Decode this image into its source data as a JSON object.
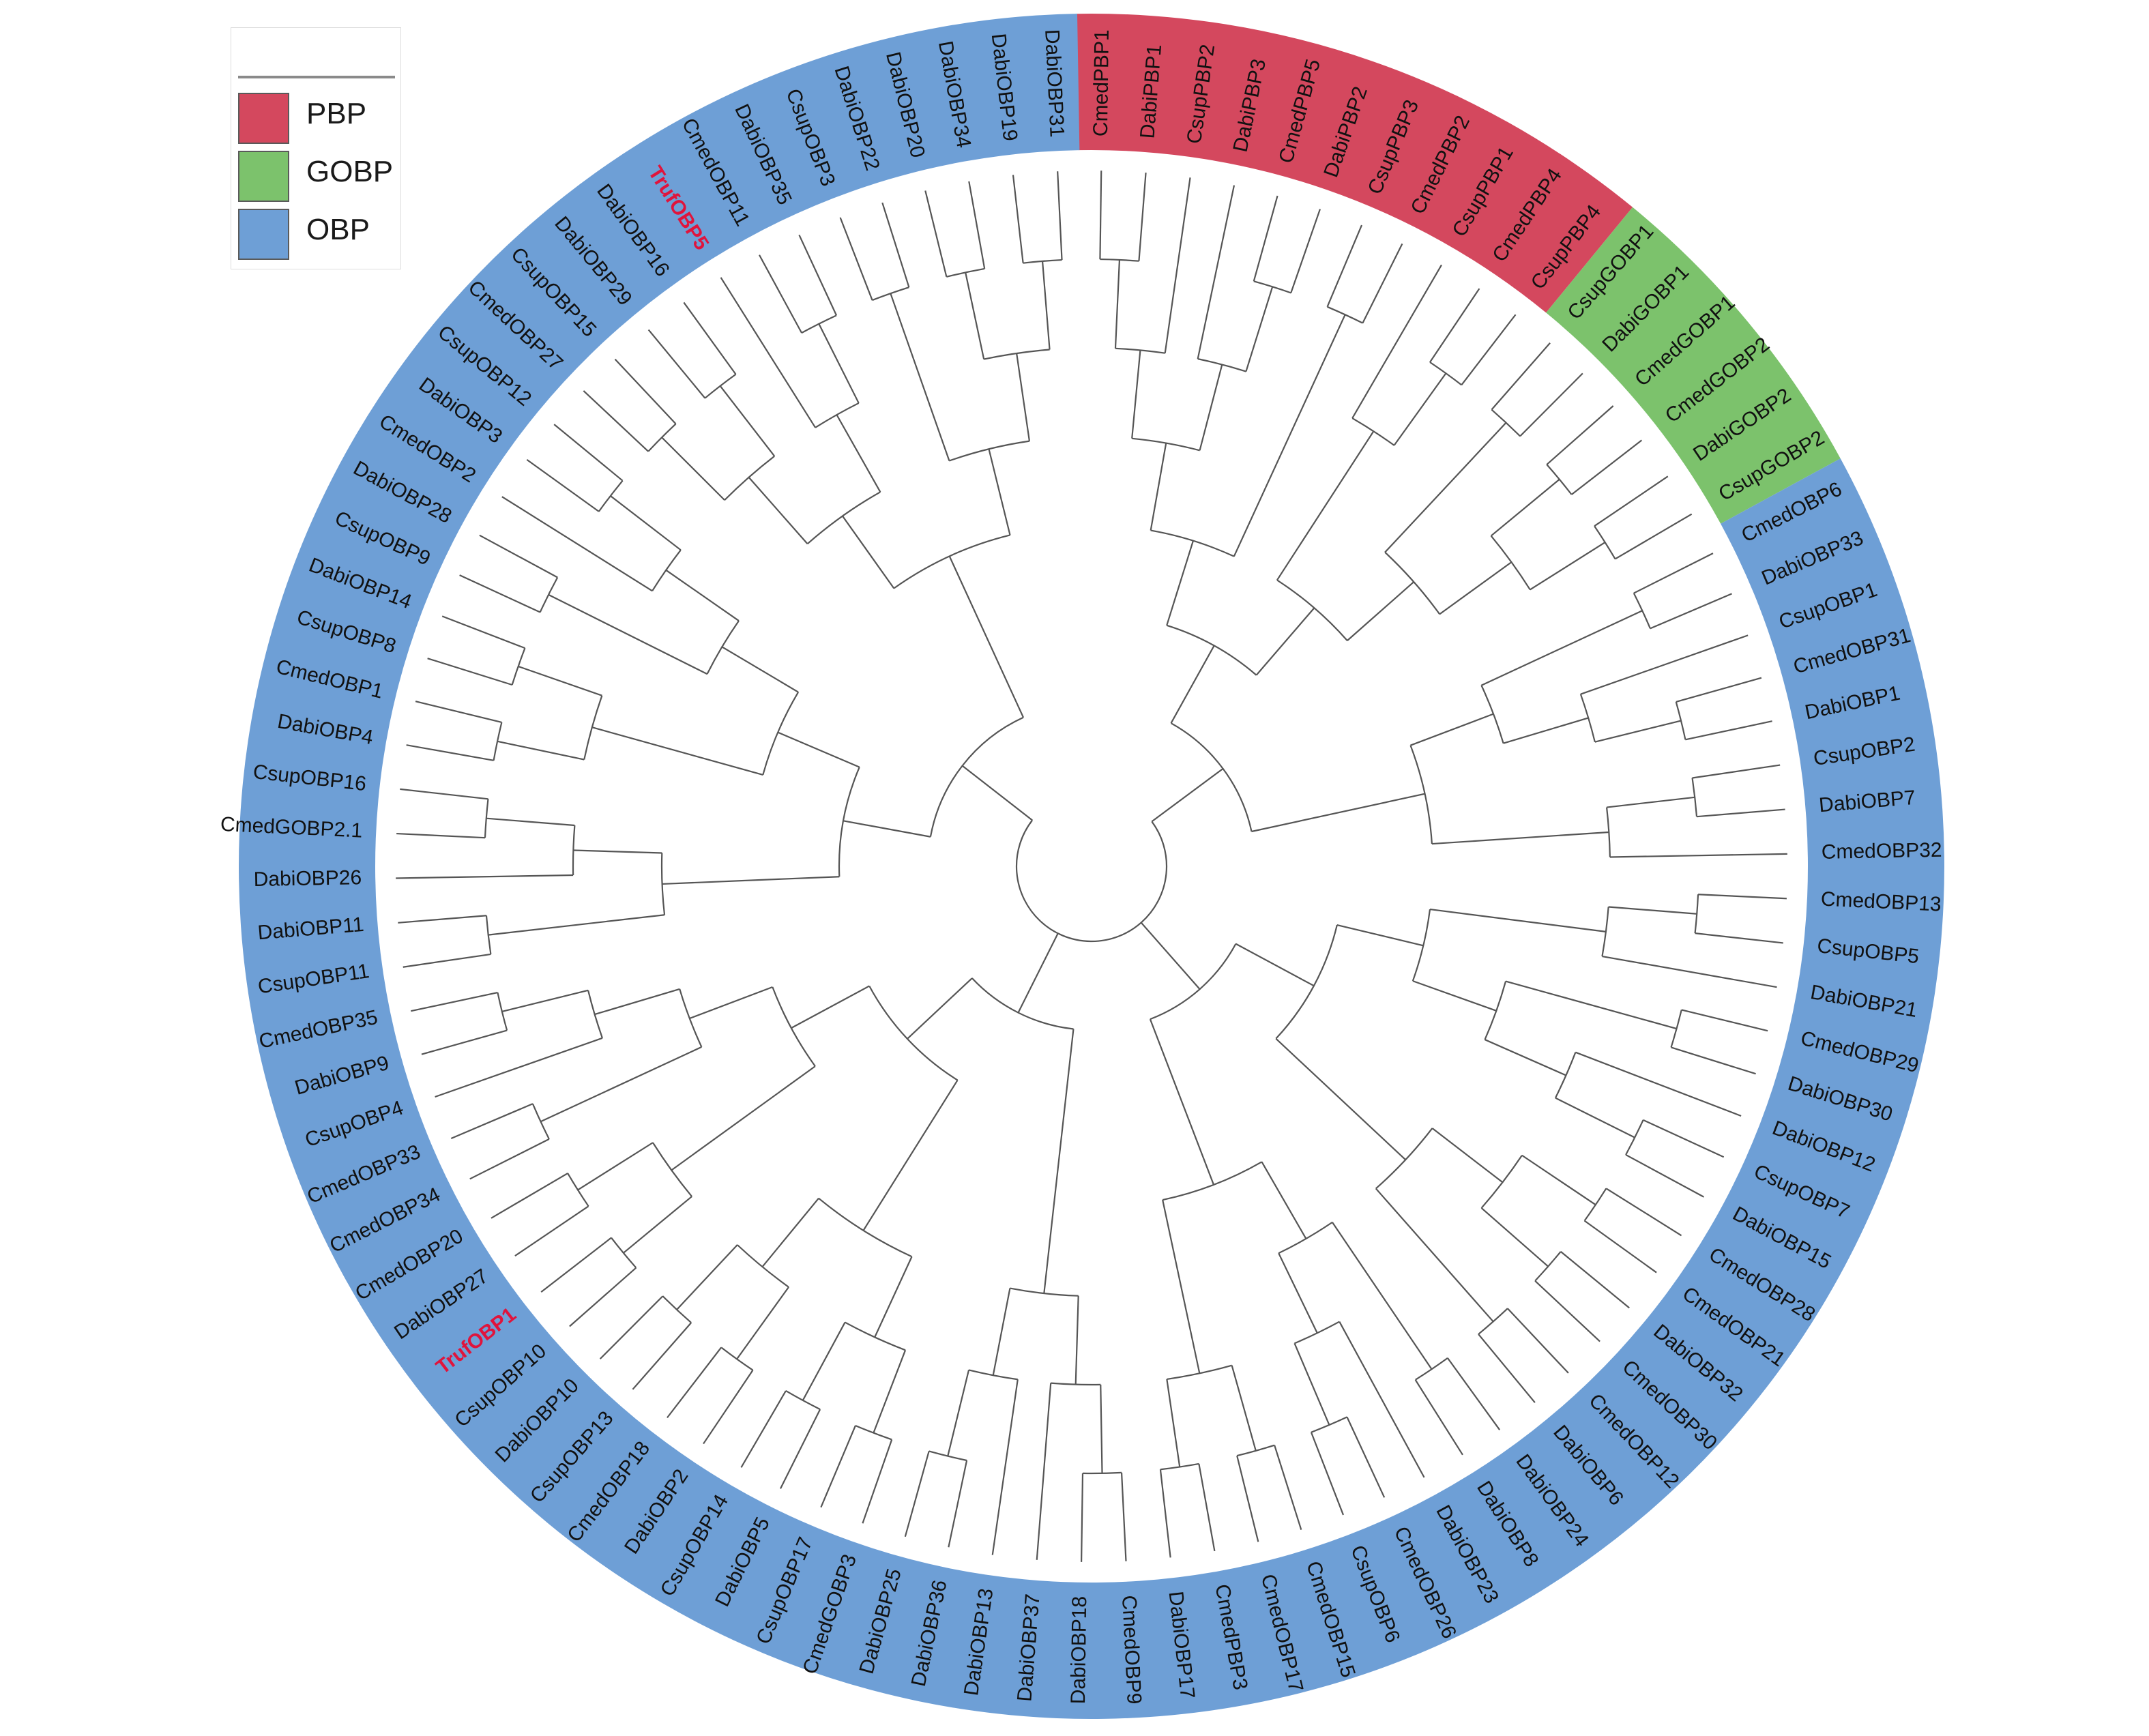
{
  "legend": {
    "items": [
      {
        "label": "PBP",
        "color": "#d4485e"
      },
      {
        "label": "GOBP",
        "color": "#7cc26c"
      },
      {
        "label": "OBP",
        "color": "#6e9fd6"
      }
    ]
  },
  "tree": {
    "leaves": [
      {
        "name": "CmedPBP1",
        "group": "PBP"
      },
      {
        "name": "DabiPBP1",
        "group": "PBP"
      },
      {
        "name": "CsupPBP2",
        "group": "PBP"
      },
      {
        "name": "DabiPBP3",
        "group": "PBP"
      },
      {
        "name": "CmedPBP5",
        "group": "PBP"
      },
      {
        "name": "DabiPBP2",
        "group": "PBP"
      },
      {
        "name": "CsupPBP3",
        "group": "PBP"
      },
      {
        "name": "CmedPBP2",
        "group": "PBP"
      },
      {
        "name": "CsupPBP1",
        "group": "PBP"
      },
      {
        "name": "CmedPBP4",
        "group": "PBP"
      },
      {
        "name": "CsupPBP4",
        "group": "PBP"
      },
      {
        "name": "CsupGOBP1",
        "group": "GOBP"
      },
      {
        "name": "DabiGOBP1",
        "group": "GOBP"
      },
      {
        "name": "CmedGOBP1",
        "group": "GOBP"
      },
      {
        "name": "CmedGOBP2",
        "group": "GOBP"
      },
      {
        "name": "DabiGOBP2",
        "group": "GOBP"
      },
      {
        "name": "CsupGOBP2",
        "group": "GOBP"
      },
      {
        "name": "CmedOBP6",
        "group": "OBP"
      },
      {
        "name": "DabiOBP33",
        "group": "OBP"
      },
      {
        "name": "CsupOBP1",
        "group": "OBP"
      },
      {
        "name": "CmedOBP31",
        "group": "OBP"
      },
      {
        "name": "DabiOBP1",
        "group": "OBP"
      },
      {
        "name": "CsupOBP2",
        "group": "OBP"
      },
      {
        "name": "DabiOBP7",
        "group": "OBP"
      },
      {
        "name": "CmedOBP32",
        "group": "OBP"
      },
      {
        "name": "CmedOBP13",
        "group": "OBP"
      },
      {
        "name": "CsupOBP5",
        "group": "OBP"
      },
      {
        "name": "DabiOBP21",
        "group": "OBP"
      },
      {
        "name": "CmedOBP29",
        "group": "OBP"
      },
      {
        "name": "DabiOBP30",
        "group": "OBP"
      },
      {
        "name": "DabiOBP12",
        "group": "OBP"
      },
      {
        "name": "CsupOBP7",
        "group": "OBP"
      },
      {
        "name": "DabiOBP15",
        "group": "OBP"
      },
      {
        "name": "CmedOBP28",
        "group": "OBP"
      },
      {
        "name": "CmedOBP21",
        "group": "OBP"
      },
      {
        "name": "DabiOBP32",
        "group": "OBP"
      },
      {
        "name": "CmedOBP30",
        "group": "OBP"
      },
      {
        "name": "CmedOBP12",
        "group": "OBP"
      },
      {
        "name": "DabiOBP6",
        "group": "OBP"
      },
      {
        "name": "DabiOBP24",
        "group": "OBP"
      },
      {
        "name": "DabiOBP8",
        "group": "OBP"
      },
      {
        "name": "DabiOBP23",
        "group": "OBP"
      },
      {
        "name": "CmedOBP26",
        "group": "OBP"
      },
      {
        "name": "CsupOBP6",
        "group": "OBP"
      },
      {
        "name": "CmedOBP15",
        "group": "OBP"
      },
      {
        "name": "CmedOBP17",
        "group": "OBP"
      },
      {
        "name": "CmedPBP3",
        "group": "OBP"
      },
      {
        "name": "DabiOBP17",
        "group": "OBP"
      },
      {
        "name": "CmedOBP9",
        "group": "OBP"
      },
      {
        "name": "DabiOBP18",
        "group": "OBP"
      },
      {
        "name": "DabiOBP37",
        "group": "OBP"
      },
      {
        "name": "DabiOBP13",
        "group": "OBP"
      },
      {
        "name": "DabiOBP36",
        "group": "OBP"
      },
      {
        "name": "DabiOBP25",
        "group": "OBP"
      },
      {
        "name": "CmedGOBP3",
        "group": "OBP"
      },
      {
        "name": "CsupOBP17",
        "group": "OBP"
      },
      {
        "name": "DabiOBP5",
        "group": "OBP"
      },
      {
        "name": "CsupOBP14",
        "group": "OBP"
      },
      {
        "name": "DabiOBP2",
        "group": "OBP"
      },
      {
        "name": "CmedOBP18",
        "group": "OBP"
      },
      {
        "name": "CsupOBP13",
        "group": "OBP"
      },
      {
        "name": "DabiOBP10",
        "group": "OBP"
      },
      {
        "name": "CsupOBP10",
        "group": "OBP"
      },
      {
        "name": "TrufOBP1",
        "group": "OBP",
        "highlight": true
      },
      {
        "name": "DabiOBP27",
        "group": "OBP"
      },
      {
        "name": "CmedOBP20",
        "group": "OBP"
      },
      {
        "name": "CmedOBP34",
        "group": "OBP"
      },
      {
        "name": "CmedOBP33",
        "group": "OBP"
      },
      {
        "name": "CsupOBP4",
        "group": "OBP"
      },
      {
        "name": "DabiOBP9",
        "group": "OBP"
      },
      {
        "name": "CmedOBP35",
        "group": "OBP"
      },
      {
        "name": "CsupOBP11",
        "group": "OBP"
      },
      {
        "name": "DabiOBP11",
        "group": "OBP"
      },
      {
        "name": "DabiOBP26",
        "group": "OBP"
      },
      {
        "name": "CmedGOBP2.1",
        "group": "OBP"
      },
      {
        "name": "CsupOBP16",
        "group": "OBP"
      },
      {
        "name": "DabiOBP4",
        "group": "OBP"
      },
      {
        "name": "CmedOBP1",
        "group": "OBP"
      },
      {
        "name": "CsupOBP8",
        "group": "OBP"
      },
      {
        "name": "DabiOBP14",
        "group": "OBP"
      },
      {
        "name": "CsupOBP9",
        "group": "OBP"
      },
      {
        "name": "DabiOBP28",
        "group": "OBP"
      },
      {
        "name": "CmedOBP2",
        "group": "OBP"
      },
      {
        "name": "DabiOBP3",
        "group": "OBP"
      },
      {
        "name": "CsupOBP12",
        "group": "OBP"
      },
      {
        "name": "CmedOBP27",
        "group": "OBP"
      },
      {
        "name": "CsupOBP15",
        "group": "OBP"
      },
      {
        "name": "DabiOBP29",
        "group": "OBP"
      },
      {
        "name": "DabiOBP16",
        "group": "OBP"
      },
      {
        "name": "TrufOBP5",
        "group": "OBP",
        "highlight": true
      },
      {
        "name": "CmedOBP11",
        "group": "OBP"
      },
      {
        "name": "DabiOBP35",
        "group": "OBP"
      },
      {
        "name": "CsupOBP3",
        "group": "OBP"
      },
      {
        "name": "DabiOBP22",
        "group": "OBP"
      },
      {
        "name": "DabiOBP20",
        "group": "OBP"
      },
      {
        "name": "DabiOBP34",
        "group": "OBP"
      },
      {
        "name": "DabiOBP19",
        "group": "OBP"
      },
      {
        "name": "DabiOBP31",
        "group": "OBP"
      }
    ]
  }
}
